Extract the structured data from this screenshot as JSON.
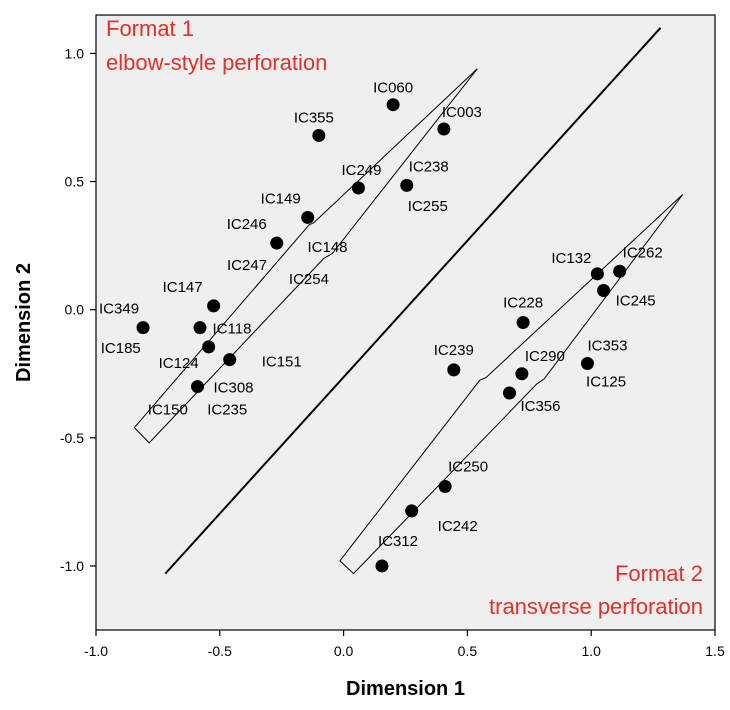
{
  "chart_data": {
    "type": "scatter",
    "title": "",
    "xlabel": "Dimension 1",
    "ylabel": "Dimension 2",
    "xlim": [
      -1.0,
      1.5
    ],
    "ylim": [
      -1.25,
      1.15
    ],
    "x_ticks": [
      "-1.0",
      "-0.5",
      "0.0",
      "0.5",
      "1.0",
      "1.5"
    ],
    "y_ticks": [
      "1.0",
      "0.5",
      "0.0",
      "-0.5",
      "-1.0"
    ],
    "grid": false,
    "background": "#efefef",
    "point_color": "#000000",
    "annotation_color": "#e0312b",
    "annotations": [
      {
        "lines": [
          "Format 1",
          "elbow-style perforation"
        ],
        "position": "top-left"
      },
      {
        "lines": [
          "Format 2",
          "transverse perforation"
        ],
        "position": "bottom-right"
      }
    ],
    "divider_line": {
      "from": [
        -0.72,
        -1.03
      ],
      "to": [
        1.28,
        1.1
      ]
    },
    "arrows": [
      {
        "name": "format-1-arrow",
        "points": [
          [
            -0.845,
            -0.46
          ],
          [
            -0.785,
            -0.52
          ],
          [
            -0.08,
            0.2
          ],
          [
            -0.045,
            0.22
          ],
          [
            0.54,
            0.94
          ],
          [
            -0.12,
            0.34
          ],
          [
            -0.14,
            0.33
          ]
        ]
      },
      {
        "name": "format-2-arrow",
        "points": [
          [
            -0.015,
            -0.98
          ],
          [
            0.04,
            -1.03
          ],
          [
            0.78,
            -0.29
          ],
          [
            0.81,
            -0.27
          ],
          [
            1.37,
            0.45
          ],
          [
            0.575,
            -0.265
          ],
          [
            0.55,
            -0.275
          ]
        ]
      }
    ],
    "points": [
      {
        "label": "IC060",
        "x": 0.2,
        "y": 0.8
      },
      {
        "label": "IC003",
        "x": 0.405,
        "y": 0.705
      },
      {
        "label": "IC355",
        "x": -0.1,
        "y": 0.68
      },
      {
        "label": "IC249",
        "x": 0.06,
        "y": 0.475
      },
      {
        "label": "IC238",
        "x": 0.255,
        "y": 0.485
      },
      {
        "label": "IC255",
        "x": null,
        "y": null
      },
      {
        "label": "IC149",
        "x": -0.145,
        "y": 0.36
      },
      {
        "label": "IC246",
        "x": -0.27,
        "y": 0.26
      },
      {
        "label": "IC148",
        "x": null,
        "y": null
      },
      {
        "label": "IC247",
        "x": null,
        "y": null
      },
      {
        "label": "IC254",
        "x": null,
        "y": null
      },
      {
        "label": "IC147",
        "x": -0.525,
        "y": 0.015
      },
      {
        "label": "IC349",
        "x": -0.81,
        "y": -0.07
      },
      {
        "label": "IC185",
        "x": null,
        "y": null
      },
      {
        "label": "IC118",
        "x": -0.58,
        "y": -0.07
      },
      {
        "label": "IC124",
        "x": -0.545,
        "y": -0.145
      },
      {
        "label": "IC151",
        "x": -0.46,
        "y": -0.195
      },
      {
        "label": "IC308",
        "x": -0.59,
        "y": -0.3
      },
      {
        "label": "IC150",
        "x": null,
        "y": null
      },
      {
        "label": "IC235",
        "x": null,
        "y": null
      },
      {
        "label": "IC132",
        "x": 1.025,
        "y": 0.14
      },
      {
        "label": "IC262",
        "x": 1.115,
        "y": 0.15
      },
      {
        "label": "IC245",
        "x": 1.05,
        "y": 0.075
      },
      {
        "label": "IC228",
        "x": 0.725,
        "y": -0.05
      },
      {
        "label": "IC353",
        "x": 0.985,
        "y": -0.21
      },
      {
        "label": "IC125",
        "x": null,
        "y": null
      },
      {
        "label": "IC239",
        "x": 0.445,
        "y": -0.235
      },
      {
        "label": "IC290",
        "x": 0.72,
        "y": -0.25
      },
      {
        "label": "IC356",
        "x": 0.67,
        "y": -0.325
      },
      {
        "label": "IC250",
        "x": 0.41,
        "y": -0.69
      },
      {
        "label": "IC242",
        "x": 0.275,
        "y": -0.785
      },
      {
        "label": "IC312",
        "x": 0.155,
        "y": -1.0
      }
    ]
  }
}
